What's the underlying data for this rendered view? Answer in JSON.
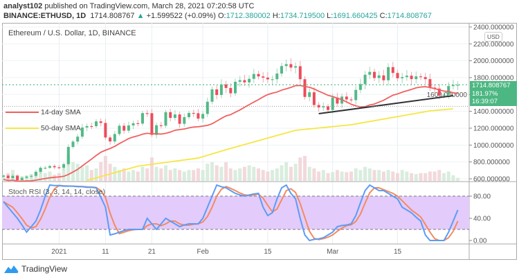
{
  "header": {
    "publisher": "analyst102",
    "published_text": "published on TradingView.com, March 28, 2021 07:20:58 UTC",
    "symbol": "BINANCE:ETHUSD, 1D",
    "last": "1714.808767",
    "change": "+1.599522 (+0.09%)",
    "o_label": "O:",
    "o": "1712.380002",
    "h_label": "H:",
    "h": "1734.719500",
    "l_label": "L:",
    "l": "1691.660425",
    "c_label": "C:",
    "c": "1714.808767"
  },
  "pane_title": "Ethereum / U.S. Dollar, 1D, BINANCE",
  "currency": "USD",
  "price_box": {
    "price": "1714.808767",
    "percent": "181.97%",
    "countdown": "16:39:07"
  },
  "legend": [
    {
      "label": "14-day SMA",
      "color": "#f0605f"
    },
    {
      "label": "50-day SMA",
      "color": "#f5e642"
    }
  ],
  "stoch_title": "Stoch RSI (3, 3, 14, 14, close)",
  "footer": {
    "brand": "TradingView"
  },
  "colors": {
    "up": "#53b987",
    "down": "#eb4d5c",
    "k": "#5b9cf6",
    "d": "#f48a5f",
    "band": "#e3cbfb",
    "trendline": "#333333"
  },
  "chart_data": [
    {
      "type": "candlestick",
      "start_date": "2020-12-20",
      "interval": "1D",
      "ylim": [
        600,
        2400
      ],
      "y_ticks": [
        "2400.000000",
        "2200.000000",
        "2000.000000",
        "1800.000000",
        "1600.000000",
        "1400.000000",
        "1200.000000",
        "1000.000000",
        "800.000000",
        "600.000000"
      ],
      "y_tick_values": [
        2400,
        2200,
        2000,
        1800,
        1600,
        1400,
        1200,
        1000,
        800,
        600
      ],
      "x_ticks": [
        {
          "date": "2021-01-01",
          "label": "2021"
        },
        {
          "date": "2021-01-11",
          "label": "11"
        },
        {
          "date": "2021-01-21",
          "label": "21"
        },
        {
          "date": "2021-02-01",
          "label": "Feb"
        },
        {
          "date": "2021-02-15",
          "label": "15"
        },
        {
          "date": "2021-03-01",
          "label": "Mar"
        },
        {
          "date": "2021-03-15",
          "label": "15"
        }
      ],
      "close": [
        638,
        608,
        636,
        584,
        612,
        626,
        635,
        683,
        731,
        731,
        751,
        737,
        730,
        774,
        978,
        1041,
        1100,
        1208,
        1225,
        1224,
        1281,
        1262,
        1090,
        1043,
        1131,
        1229,
        1171,
        1233,
        1259,
        1255,
        1379,
        1378,
        1121,
        1235,
        1230,
        1390,
        1322,
        1363,
        1252,
        1331,
        1381,
        1377,
        1314,
        1369,
        1514,
        1660,
        1594,
        1719,
        1677,
        1614,
        1750,
        1770,
        1743,
        1785,
        1843,
        1814,
        1800,
        1779,
        1781,
        1848,
        1937,
        1960,
        1919,
        1935,
        1781,
        1571,
        1626,
        1475,
        1446,
        1459,
        1416,
        1564,
        1492,
        1575,
        1541,
        1533,
        1654,
        1723,
        1834,
        1868,
        1795,
        1826,
        1768,
        1924,
        1855,
        1792,
        1806,
        1823,
        1782,
        1815,
        1806,
        1782,
        1681,
        1670,
        1587,
        1595,
        1700,
        1713,
        1714.81
      ],
      "volume_relative": [
        20,
        25,
        35,
        20,
        15,
        18,
        22,
        30,
        40,
        25,
        30,
        20,
        25,
        40,
        85,
        60,
        55,
        45,
        50,
        35,
        40,
        60,
        80,
        55,
        45,
        35,
        40,
        30,
        35,
        30,
        45,
        40,
        75,
        45,
        40,
        50,
        35,
        40,
        35,
        30,
        35,
        35,
        40,
        35,
        55,
        60,
        50,
        45,
        60,
        40,
        35,
        40,
        45,
        50,
        45,
        40,
        35,
        30,
        35,
        40,
        50,
        60,
        45,
        55,
        75,
        80,
        45,
        40,
        30,
        35,
        25,
        28,
        35,
        30,
        28,
        30,
        40,
        35,
        45,
        40,
        35,
        35,
        30,
        35,
        30,
        25,
        35,
        30,
        25,
        22,
        25,
        25,
        30,
        30,
        35,
        25,
        30,
        18,
        10
      ],
      "sma50": [
        {
          "date": "2021-01-07",
          "value": 580
        },
        {
          "date": "2021-01-18",
          "value": 750
        },
        {
          "date": "2021-01-31",
          "value": 846
        },
        {
          "date": "2021-02-06",
          "value": 945
        },
        {
          "date": "2021-02-21",
          "value": 1175
        },
        {
          "date": "2021-03-05",
          "value": 1241
        },
        {
          "date": "2021-03-22",
          "value": 1405
        },
        {
          "date": "2021-03-27",
          "value": 1430
        }
      ],
      "trendline": [
        {
          "date": "2021-02-26",
          "value": 1372
        },
        {
          "date": "2021-03-27",
          "value": 1586
        }
      ],
      "last_price": 1714.81,
      "prev_close_line": 1460
    },
    {
      "type": "line",
      "title": "Stoch RSI (3, 3, 14, 14, close)",
      "ylim": [
        0,
        100
      ],
      "y_ticks": [
        "80.00",
        "40.00",
        "0.00"
      ],
      "y_tick_values": [
        80,
        40,
        0
      ],
      "band": [
        20,
        80
      ],
      "k": [
        70,
        60,
        50,
        40,
        28,
        15,
        25,
        35,
        55,
        80,
        100,
        99,
        99,
        98,
        98,
        98,
        97,
        97,
        96,
        96,
        95,
        78,
        60,
        10,
        12,
        15,
        18,
        20,
        20,
        20,
        20,
        40,
        30,
        20,
        30,
        40,
        35,
        30,
        25,
        28,
        30,
        30,
        30,
        40,
        60,
        80,
        100,
        97,
        95,
        90,
        85,
        82,
        80,
        82,
        84,
        85,
        60,
        45,
        50,
        75,
        95,
        100,
        85,
        75,
        40,
        10,
        0,
        2,
        3,
        5,
        10,
        15,
        25,
        27,
        28,
        30,
        45,
        68,
        90,
        100,
        95,
        90,
        90,
        85,
        80,
        75,
        60,
        55,
        50,
        42,
        35,
        10,
        0,
        0,
        0,
        0,
        15,
        35,
        55
      ]
    }
  ]
}
